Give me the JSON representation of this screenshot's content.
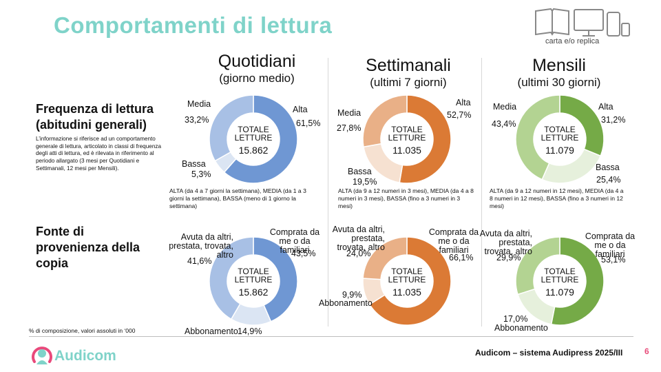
{
  "title": "Comportamenti di lettura",
  "devices_caption": "carta e/o replica",
  "columns": [
    {
      "title": "Quotidiani",
      "subtitle": "(giorno medio)"
    },
    {
      "title": "Settimanali",
      "subtitle": "(ultimi 7 giorni)"
    },
    {
      "title": "Mensili",
      "subtitle": "(ultimi 30 giorni)"
    }
  ],
  "rows": {
    "frequenza": {
      "title_line1": "Frequenza di lettura",
      "title_line2": "(abitudini generali)",
      "note": "L’informazione  si riferisce ad un comportamento generale di lettura, articolato in classi di frequenza degli atti di lettura, ed è rilevata in riferimento al periodo allargato (3 mesi per Quotidiani e Settimanali, 12 mesi per Mensili)."
    },
    "fonte": {
      "title_line1": "Fonte di",
      "title_line2": "provenienza della",
      "title_line3": "copia"
    }
  },
  "center": {
    "line1": "TOTALE",
    "line2": "LETTURE"
  },
  "legend_notes": [
    "ALTA (da 4 a 7 giorni la settimana), MEDIA (da 1 a 3 giorni la settimana), BASSA (meno di 1 giorno la settimana)",
    "ALTA (da 9 a 12 numeri in 3 mesi), MEDIA (da 4 a 8 numeri in 3 mesi), BASSA (fino a 3 numeri in 3 mesi)",
    "ALTA (da 9 a 12 numeri in 12 mesi), MEDIA (da 4 a 8 numeri in 12 mesi), BASSA (fino a 3 numeri in 12 mesi)"
  ],
  "chart_data": [
    {
      "type": "pie",
      "row": "Frequenza di lettura",
      "column": "Quotidiani",
      "total": "15.862",
      "labels": [
        "Alta",
        "Bassa",
        "Media"
      ],
      "values": [
        61.5,
        5.3,
        33.2
      ],
      "value_labels": [
        "61,5%",
        "5,3%",
        "33,2%"
      ],
      "colors": [
        "#6f97d3",
        "#dbe5f3",
        "#a8c0e5"
      ]
    },
    {
      "type": "pie",
      "row": "Frequenza di lettura",
      "column": "Settimanali",
      "total": "11.035",
      "labels": [
        "Alta",
        "Bassa",
        "Media"
      ],
      "values": [
        52.7,
        19.5,
        27.8
      ],
      "value_labels": [
        "52,7%",
        "19,5%",
        "27,8%"
      ],
      "colors": [
        "#db7a35",
        "#f6e1d1",
        "#e9b087"
      ]
    },
    {
      "type": "pie",
      "row": "Frequenza di lettura",
      "column": "Mensili",
      "total": "11.079",
      "labels": [
        "Alta",
        "Bassa",
        "Media"
      ],
      "values": [
        31.2,
        25.4,
        43.4
      ],
      "value_labels": [
        "31,2%",
        "25,4%",
        "43,4%"
      ],
      "colors": [
        "#75aa47",
        "#e6f0dc",
        "#b3d392"
      ]
    },
    {
      "type": "pie",
      "row": "Fonte di provenienza della copia",
      "column": "Quotidiani",
      "total": "15.862",
      "labels": [
        "Comprata da me o da familiari",
        "Abbonamento",
        "Avuta da altri, prestata, trovata, altro"
      ],
      "values": [
        43.5,
        14.9,
        41.6
      ],
      "value_labels": [
        "43,5%",
        "14,9%",
        "41,6%"
      ],
      "colors": [
        "#6f97d3",
        "#dbe5f3",
        "#a8c0e5"
      ]
    },
    {
      "type": "pie",
      "row": "Fonte di provenienza della copia",
      "column": "Settimanali",
      "total": "11.035",
      "labels": [
        "Comprata da me o da familiari",
        "Abbonamento",
        "Avuta da altri, prestata, trovata, altro"
      ],
      "values": [
        66.1,
        9.9,
        24.0
      ],
      "value_labels": [
        "66,1%",
        "9,9%",
        "24,0%"
      ],
      "colors": [
        "#db7a35",
        "#f6e1d1",
        "#e9b087"
      ]
    },
    {
      "type": "pie",
      "row": "Fonte di provenienza della copia",
      "column": "Mensili",
      "total": "11.079",
      "labels": [
        "Comprata da me o da familiari",
        "Abbonamento",
        "Avuta da altri, prestata, trovata, altro"
      ],
      "values": [
        53.1,
        17.0,
        29.9
      ],
      "value_labels": [
        "53,1%",
        "17,0%",
        "29,9%"
      ],
      "colors": [
        "#75aa47",
        "#e6f0dc",
        "#b3d392"
      ]
    }
  ],
  "footnote": "% di composizione, valori assoluti in ‘000",
  "logo": "Audicom",
  "source": "Audicom – sistema Audipress 2025/III",
  "page_number": "6"
}
